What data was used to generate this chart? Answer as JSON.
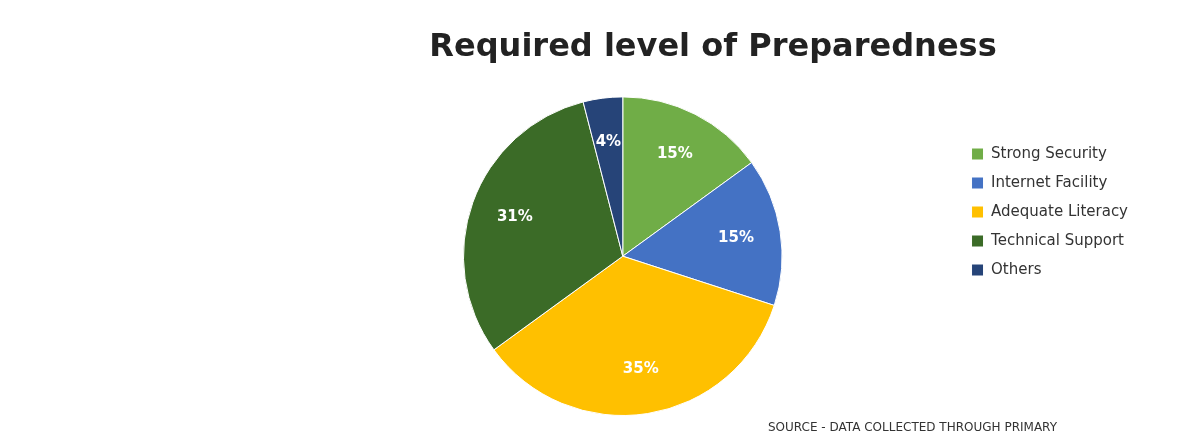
{
  "chart_data": {
    "type": "pie",
    "title": "Required level of Preparedness",
    "categories": [
      "Strong Security",
      "Internet Facility",
      "Adequate Literacy",
      "Technical Support",
      "Others"
    ],
    "values": [
      15,
      15,
      35,
      31,
      4
    ],
    "colors": [
      "#70ad47",
      "#4472c4",
      "#ffc000",
      "#3b6b27",
      "#264478"
    ],
    "value_labels": [
      "15%",
      "15%",
      "35%",
      "31%",
      "4%"
    ],
    "legend": "right",
    "annotations": [
      "SOURCE - DATA COLLECTED THROUGH PRIMARY"
    ]
  }
}
